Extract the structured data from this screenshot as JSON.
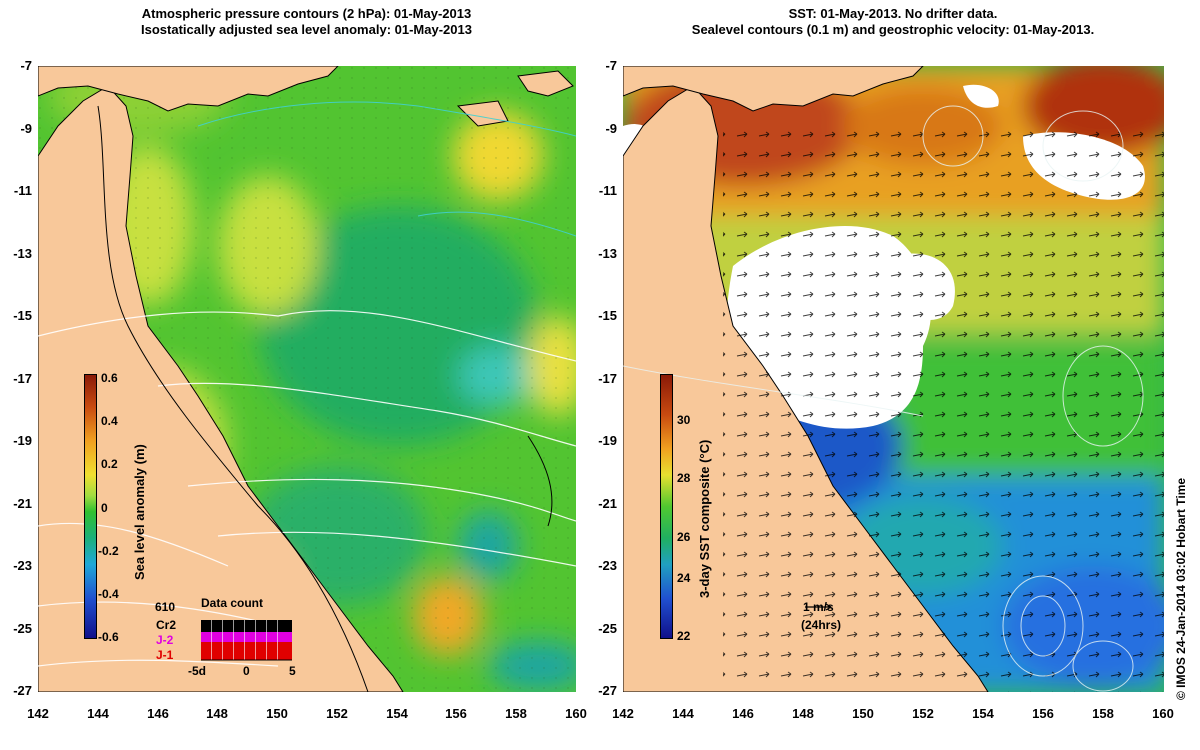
{
  "left_panel": {
    "title_line1": "Atmospheric pressure contours (2 hPa): 01-May-2013",
    "title_line2": "Isostatically adjusted sea level anomaly: 01-May-2013",
    "colorbar": {
      "label": "Sea level anomaly (m)",
      "ticks": [
        "0.6",
        "0.4",
        "0.2",
        "0",
        "-0.2",
        "-0.4",
        "-0.6"
      ],
      "range": [
        -0.6,
        0.6
      ]
    },
    "data_count": {
      "title": "Data count",
      "count": "610",
      "labels": [
        "Cr2",
        "J-2",
        "J-1"
      ],
      "label_colors": [
        "#000000",
        "#e000e0",
        "#e00000"
      ],
      "axis_labels": [
        "-5d",
        "0",
        "5"
      ]
    }
  },
  "right_panel": {
    "title_line1": "SST: 01-May-2013. No drifter data.",
    "title_line2": "Sealevel contours (0.1 m) and geostrophic velocity: 01-May-2013.",
    "colorbar": {
      "label": "3-day SST composite (°C)",
      "ticks": [
        "30",
        "28",
        "26",
        "24",
        "22"
      ],
      "range": [
        22,
        31
      ]
    },
    "velocity_scale": {
      "label": "1 m/s",
      "sublabel": "(24hrs)"
    }
  },
  "axes": {
    "y_ticks": [
      "-7",
      "-9",
      "-11",
      "-13",
      "-15",
      "-17",
      "-19",
      "-21",
      "-23",
      "-25",
      "-27"
    ],
    "x_ticks": [
      "142",
      "144",
      "146",
      "148",
      "150",
      "152",
      "154",
      "156",
      "158",
      "160"
    ],
    "lon_range": [
      142,
      160
    ],
    "lat_range": [
      -27,
      -7
    ]
  },
  "credit": "© IMOS 24-Jan-2014 03:02 Hobart Time",
  "colors": {
    "land": "#f8c89a",
    "ssl_mid": "#50cc30",
    "ssl_high": "#f0e030",
    "ssl_low": "#1fb07a",
    "sst_warm": "#b83a10",
    "sst_mid": "#40c040",
    "sst_cool": "#1880e0",
    "cloud": "#ffffff"
  }
}
